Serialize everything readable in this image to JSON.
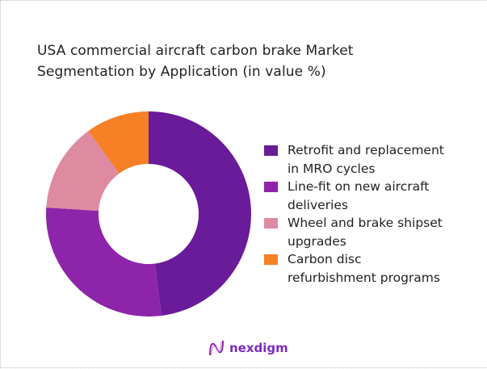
{
  "title_line1": "USA commercial aircraft carbon brake Market",
  "title_line2": "Segmentation by Application (in value %)",
  "brand": "nexdigm",
  "chart_data": {
    "type": "pie",
    "subtype": "donut",
    "title": "USA commercial aircraft carbon brake Market Segmentation by Application (in value %)",
    "categories": [
      "Retrofit and replacement in MRO cycles",
      "Line-fit on new aircraft deliveries",
      "Wheel and brake shipset upgrades",
      "Carbon disc refurbishment programs"
    ],
    "values": [
      48,
      28,
      14,
      10
    ],
    "colors": [
      "#6a1b9a",
      "#8e24aa",
      "#de8aa0",
      "#f58025"
    ],
    "legend_position": "right"
  },
  "legend": [
    {
      "line1": "Retrofit and replacement",
      "line2": "in MRO cycles",
      "color": "#6a1b9a"
    },
    {
      "line1": "Line-fit on new aircraft",
      "line2": "deliveries",
      "color": "#8e24aa"
    },
    {
      "line1": "Wheel and brake shipset",
      "line2": "upgrades",
      "color": "#de8aa0"
    },
    {
      "line1": "Carbon disc",
      "line2": "refurbishment programs",
      "color": "#f58025"
    }
  ]
}
